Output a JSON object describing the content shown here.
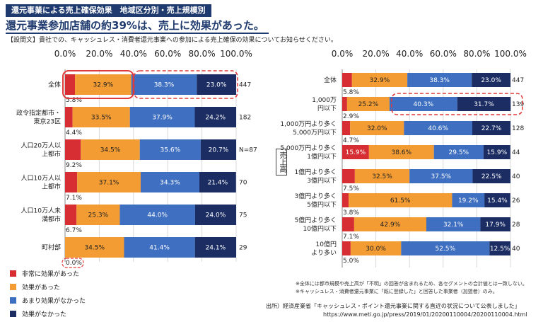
{
  "header": {
    "subtitle": "還元事業による売上確保効果　地域区分別・売上規模別",
    "title": "還元事業参加店舗の約39%は、売上に効果があった。",
    "question": "【設問文】貴社での、キャッシュレス・消費者還元事業への参加による売上確保の効果についてお知らせください。"
  },
  "colors": {
    "c1": "#d62e32",
    "c2": "#f39c33",
    "c3": "#3e6fc0",
    "c4": "#1b2d63",
    "highlight": "#e23a3a"
  },
  "legend": [
    "非常に効果があった",
    "効果があった",
    "あまり効果がなかった",
    "効果がなかった"
  ],
  "chart_data": [
    {
      "type": "bar",
      "stacked": true,
      "orientation": "horizontal",
      "xlim": [
        0,
        100
      ],
      "ticks": [
        "0.0%",
        "20.0%",
        "40.0%",
        "60.0%",
        "80.0%",
        "100.0%"
      ],
      "categories": [
        [
          "全体"
        ],
        [
          "政令指定都市・",
          "東京23区"
        ],
        [
          "人口20万人以",
          "上都市"
        ],
        [
          "人口10万人以",
          "上都市"
        ],
        [
          "人口10万人未",
          "満都市"
        ],
        [
          "町村部"
        ]
      ],
      "series": [
        {
          "name": "非常に効果があった",
          "values": [
            5.8,
            4.4,
            9.2,
            7.1,
            6.7,
            0.0
          ]
        },
        {
          "name": "効果があった",
          "values": [
            32.9,
            33.5,
            34.5,
            37.1,
            25.3,
            34.5
          ]
        },
        {
          "name": "あまり効果がなかった",
          "values": [
            38.3,
            37.9,
            35.6,
            34.3,
            44.0,
            41.4
          ]
        },
        {
          "name": "効果がなかった",
          "values": [
            23.0,
            24.2,
            20.7,
            21.4,
            24.0,
            24.1
          ]
        }
      ],
      "labels": [
        [
          "5.8%",
          "32.9%",
          "38.3%",
          "23.0%"
        ],
        [
          "4.4%",
          "33.5%",
          "37.9%",
          "24.2%"
        ],
        [
          "9.2%",
          "34.5%",
          "35.6%",
          "20.7%"
        ],
        [
          "7.1%",
          "37.1%",
          "34.3%",
          "21.4%"
        ],
        [
          "6.7%",
          "25.3%",
          "44.0%",
          "24.0%"
        ],
        [
          "0.0%",
          "34.5%",
          "41.4%",
          "24.1%"
        ]
      ],
      "n": [
        "447",
        "182",
        "N=87",
        "70",
        "75",
        "29"
      ]
    },
    {
      "type": "bar",
      "stacked": true,
      "orientation": "horizontal",
      "xlim": [
        0,
        100
      ],
      "ticks": [
        "0.0%",
        "20.0%",
        "40.0%",
        "60.0%",
        "80.0%",
        "100.0%"
      ],
      "ylabel": "売上高",
      "categories": [
        [
          "全体"
        ],
        [
          "1,000万",
          "円以下"
        ],
        [
          "1,000万円より多く",
          "5,000万円以下"
        ],
        [
          "5,000万円より多く",
          "1億円以下"
        ],
        [
          "1億円より多く",
          "3億円以下"
        ],
        [
          "3億円より多く",
          "5億円以下"
        ],
        [
          "5億円より多く",
          "10億円以下"
        ],
        [
          "10億円",
          "より多い"
        ]
      ],
      "series": [
        {
          "name": "非常に効果があった",
          "values": [
            5.8,
            2.9,
            4.7,
            15.9,
            7.5,
            3.8,
            7.1,
            5.0
          ]
        },
        {
          "name": "効果があった",
          "values": [
            32.9,
            25.2,
            32.0,
            38.6,
            32.5,
            61.5,
            42.9,
            30.0
          ]
        },
        {
          "name": "あまり効果がなかった",
          "values": [
            38.3,
            40.3,
            40.6,
            29.5,
            37.5,
            19.2,
            32.1,
            52.5
          ]
        },
        {
          "name": "効果がなかった",
          "values": [
            23.0,
            31.7,
            22.7,
            15.9,
            22.5,
            15.4,
            17.9,
            12.5
          ]
        }
      ],
      "labels": [
        [
          "5.8%",
          "32.9%",
          "38.3%",
          "23.0%"
        ],
        [
          "2.9%",
          "25.2%",
          "40.3%",
          "31.7%"
        ],
        [
          "4.7%",
          "32.0%",
          "40.6%",
          "22.7%"
        ],
        [
          "15.9%",
          "38.6%",
          "29.5%",
          "15.9%"
        ],
        [
          "7.5%",
          "32.5%",
          "37.5%",
          "22.5%"
        ],
        [
          "3.8%",
          "61.5%",
          "19.2%",
          "15.4%"
        ],
        [
          "7.1%",
          "42.9%",
          "32.1%",
          "17.9%"
        ],
        [
          "5.0%",
          "30.0%",
          "52.5%",
          "12.5%"
        ]
      ],
      "n": [
        "447",
        "139",
        "128",
        "44",
        "40",
        "26",
        "28",
        "40"
      ]
    }
  ],
  "notes": [
    "※全体には都市規模や売上高が「不明」の回答が含まれるため、各セグメントの合計値とは一致しない。",
    "※キャッシュレス・消費者還元事業に「既に登録した」と回答した事業者（加盟者）のみ。"
  ],
  "source": "出所）経済産業省「キャッシュレス・ポイント還元事業に関する直近の状況について公表しました」",
  "url": "https://www.meti.go.jp/press/2019/01/20200110004/20200110004.html"
}
